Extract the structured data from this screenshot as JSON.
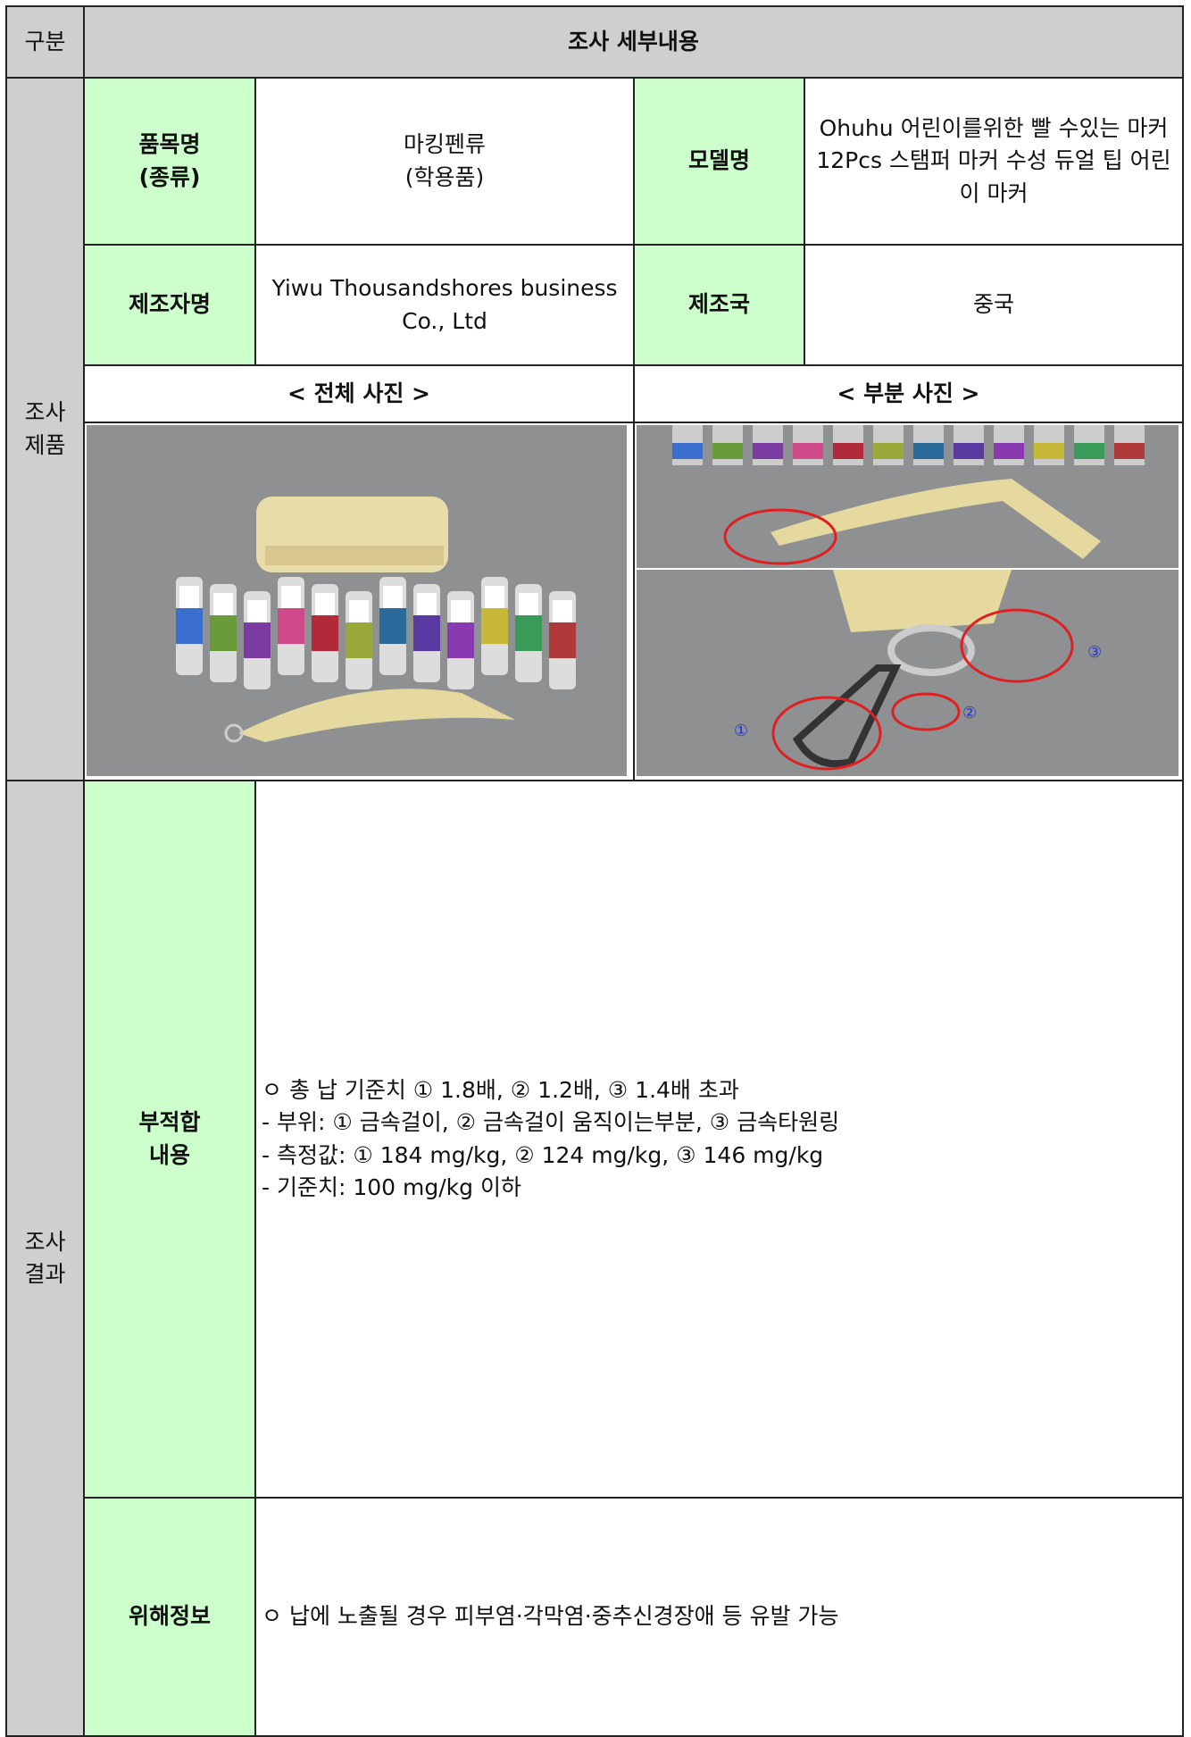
{
  "header": {
    "division": "구분",
    "details": "조사 세부내용"
  },
  "product": {
    "section": "조사\n제품",
    "item_name_label": "품목명\n(종류)",
    "item_name": "마킹펜류\n(학용품)",
    "model_label": "모델명",
    "model": "Ohuhu 어린이를위한 빨 수있는 마커 12Pcs 스탬퍼 마커 수성 듀얼 팁 어린이 마커",
    "maker_label": "제조자명",
    "maker": "Yiwu Thousandshores business Co., Ltd",
    "country_label": "제조국",
    "country": "중국",
    "full_photo_label": "< 전체 사진 >",
    "part_photo_label": "< 부분 사진 >",
    "photo_callouts": [
      "①",
      "②",
      "③"
    ]
  },
  "result": {
    "section": "조사\n결과",
    "nonconformity_label": "부적합\n내용",
    "nonconformity_lines": [
      "ㅇ 총 납 기준치 ① 1.8배, ② 1.2배, ③ 1.4배 초과",
      "- 부위: ① 금속걸이, ② 금속걸이 움직이는부분, ③ 금속타원링",
      "- 측정값: ① 184 mg/kg, ② 124 mg/kg, ③ 146 mg/kg",
      "- 기준치: 100 mg/kg 이하"
    ],
    "hazard_label": "위해정보",
    "hazard": "ㅇ 납에 노출될 경우 피부염·각막염·중추신경장애 등 유발 가능"
  }
}
